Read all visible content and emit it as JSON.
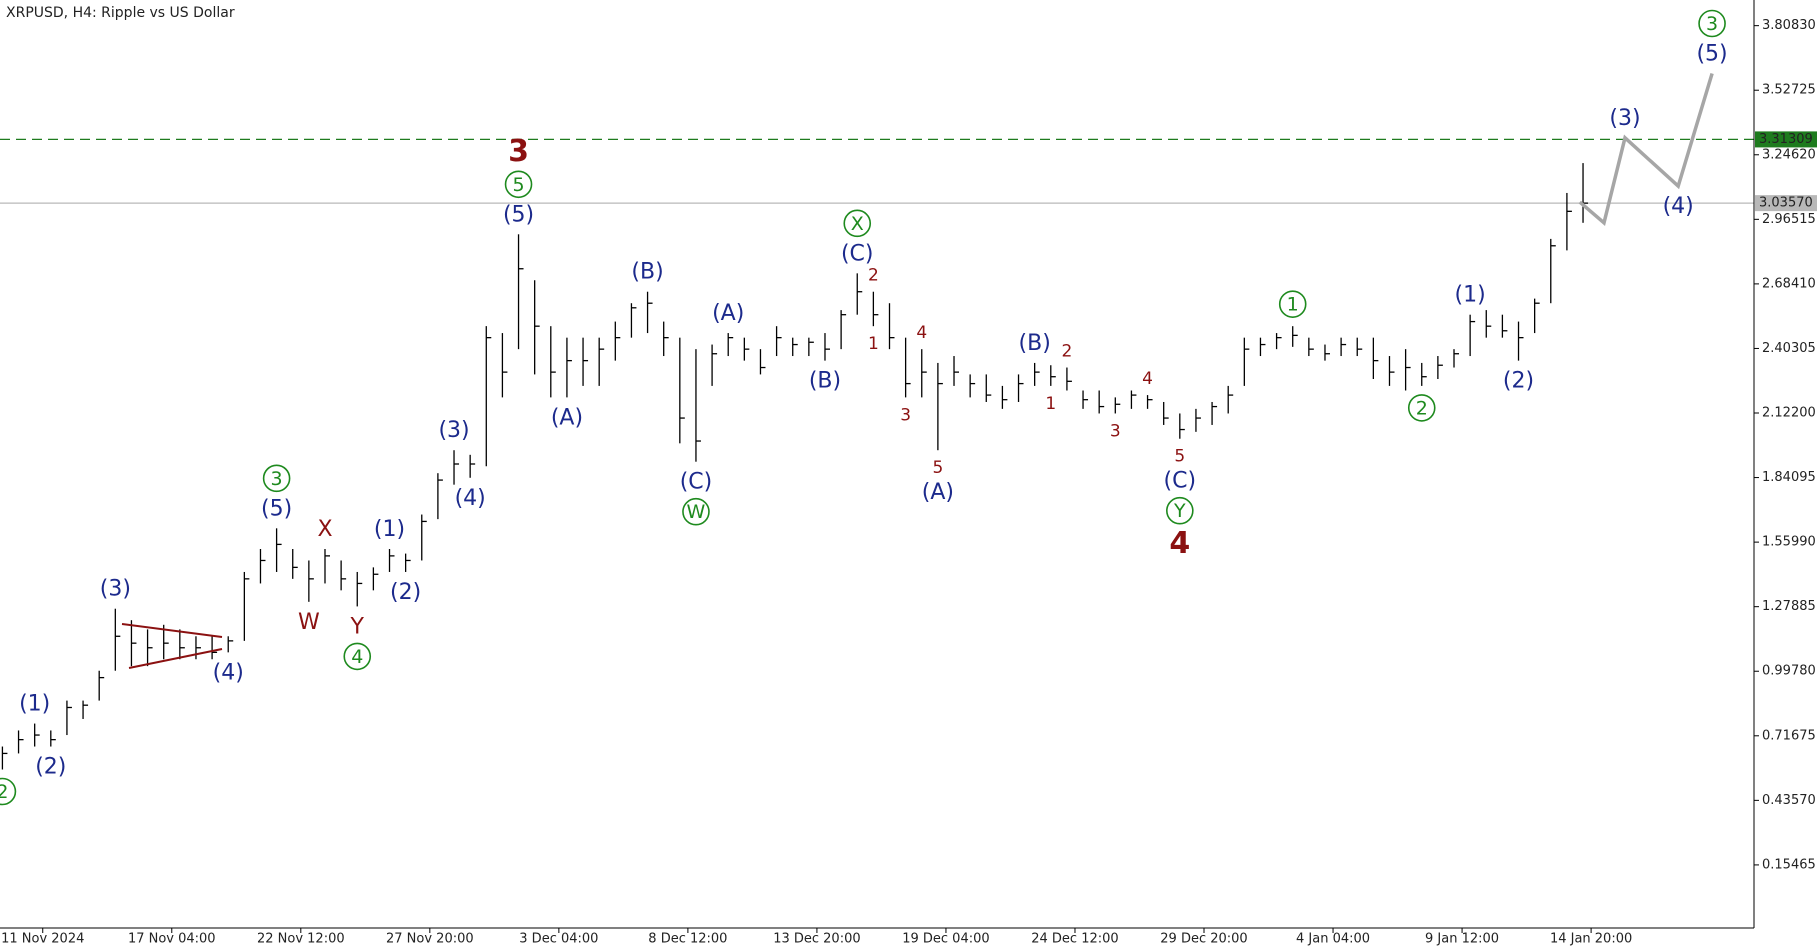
{
  "chart_data": {
    "type": "ohlc",
    "title": "XRPUSD, H4:  Ripple vs US Dollar",
    "ylim": [
      -0.12,
      3.92
    ],
    "xlim": [
      -0.15,
      108.6
    ],
    "yticks": [
      {
        "value": 3.8083,
        "label": "3.80830"
      },
      {
        "value": 3.52725,
        "label": "3.52725"
      },
      {
        "value": 3.2462,
        "label": "3.24620"
      },
      {
        "value": 2.96515,
        "label": "2.96515"
      },
      {
        "value": 2.6841,
        "label": "2.68410"
      },
      {
        "value": 2.40305,
        "label": "2.40305"
      },
      {
        "value": 2.122,
        "label": "2.12200"
      },
      {
        "value": 1.84095,
        "label": "1.84095"
      },
      {
        "value": 1.5599,
        "label": "1.55990"
      },
      {
        "value": 1.27885,
        "label": "1.27885"
      },
      {
        "value": 0.9978,
        "label": "0.99780"
      },
      {
        "value": 0.71675,
        "label": "0.71675"
      },
      {
        "value": 0.4357,
        "label": "0.43570"
      },
      {
        "value": 0.15465,
        "label": "0.15465"
      }
    ],
    "xticks": [
      {
        "value": 2.5,
        "label": "11 Nov 2024"
      },
      {
        "value": 10.5,
        "label": "17 Nov 04:00"
      },
      {
        "value": 18.5,
        "label": "22 Nov 12:00"
      },
      {
        "value": 26.5,
        "label": "27 Nov 20:00"
      },
      {
        "value": 34.5,
        "label": "3 Dec 04:00"
      },
      {
        "value": 42.5,
        "label": "8 Dec 12:00"
      },
      {
        "value": 50.5,
        "label": "13 Dec 20:00"
      },
      {
        "value": 58.5,
        "label": "19 Dec 04:00"
      },
      {
        "value": 66.5,
        "label": "24 Dec 12:00"
      },
      {
        "value": 74.5,
        "label": "29 Dec 20:00"
      },
      {
        "value": 82.5,
        "label": "4 Jan 04:00"
      },
      {
        "value": 90.5,
        "label": "9 Jan 12:00"
      },
      {
        "value": 98.5,
        "label": "14 Jan 20:00"
      }
    ],
    "color": "#000000",
    "high": [
      0.67,
      0.74,
      0.77,
      0.74,
      0.87,
      0.87,
      1.0,
      1.27,
      1.22,
      1.18,
      1.2,
      1.18,
      1.15,
      1.15,
      1.15,
      1.43,
      1.53,
      1.62,
      1.53,
      1.48,
      1.53,
      1.48,
      1.43,
      1.45,
      1.53,
      1.51,
      1.68,
      1.86,
      1.96,
      1.94,
      2.5,
      2.47,
      2.9,
      2.7,
      2.5,
      2.45,
      2.45,
      2.45,
      2.52,
      2.6,
      2.65,
      2.52,
      2.45,
      2.4,
      2.42,
      2.47,
      2.45,
      2.4,
      2.5,
      2.45,
      2.45,
      2.47,
      2.57,
      2.73,
      2.65,
      2.6,
      2.45,
      2.4,
      2.34,
      2.37,
      2.29,
      2.29,
      2.24,
      2.29,
      2.34,
      2.33,
      2.32,
      2.22,
      2.22,
      2.19,
      2.22,
      2.2,
      2.17,
      2.12,
      2.14,
      2.17,
      2.24,
      2.45,
      2.45,
      2.47,
      2.5,
      2.45,
      2.42,
      2.45,
      2.45,
      2.45,
      2.37,
      2.4,
      2.34,
      2.37,
      2.4,
      2.55,
      2.57,
      2.55,
      2.52,
      2.62,
      2.88,
      3.08,
      3.21
    ],
    "low": [
      0.57,
      0.64,
      0.67,
      0.67,
      0.72,
      0.79,
      0.87,
      1.0,
      1.02,
      1.02,
      1.05,
      1.05,
      1.05,
      1.05,
      1.08,
      1.13,
      1.38,
      1.43,
      1.4,
      1.3,
      1.38,
      1.35,
      1.28,
      1.35,
      1.43,
      1.43,
      1.48,
      1.66,
      1.81,
      1.84,
      1.89,
      2.19,
      2.4,
      2.29,
      2.19,
      2.19,
      2.24,
      2.24,
      2.35,
      2.45,
      2.47,
      2.37,
      1.99,
      1.91,
      2.24,
      2.37,
      2.35,
      2.29,
      2.37,
      2.37,
      2.37,
      2.35,
      2.4,
      2.55,
      2.5,
      2.4,
      2.19,
      2.19,
      1.96,
      2.24,
      2.19,
      2.17,
      2.14,
      2.17,
      2.24,
      2.24,
      2.22,
      2.14,
      2.12,
      2.12,
      2.14,
      2.14,
      2.07,
      2.01,
      2.04,
      2.07,
      2.12,
      2.24,
      2.37,
      2.4,
      2.41,
      2.37,
      2.35,
      2.37,
      2.37,
      2.27,
      2.24,
      2.22,
      2.24,
      2.27,
      2.32,
      2.37,
      2.45,
      2.45,
      2.35,
      2.47,
      2.6,
      2.83,
      2.95
    ],
    "close": [
      0.64,
      0.7,
      0.72,
      0.7,
      0.84,
      0.85,
      0.97,
      1.15,
      1.12,
      1.1,
      1.12,
      1.1,
      1.1,
      1.08,
      1.13,
      1.4,
      1.48,
      1.55,
      1.45,
      1.4,
      1.5,
      1.4,
      1.38,
      1.42,
      1.5,
      1.48,
      1.65,
      1.83,
      1.9,
      1.9,
      2.45,
      2.3,
      2.75,
      2.5,
      2.3,
      2.35,
      2.35,
      2.4,
      2.45,
      2.58,
      2.6,
      2.45,
      2.1,
      2.0,
      2.38,
      2.45,
      2.4,
      2.32,
      2.45,
      2.42,
      2.43,
      2.4,
      2.55,
      2.65,
      2.55,
      2.45,
      2.25,
      2.3,
      2.25,
      2.3,
      2.25,
      2.2,
      2.18,
      2.25,
      2.3,
      2.28,
      2.26,
      2.18,
      2.15,
      2.16,
      2.2,
      2.18,
      2.1,
      2.05,
      2.1,
      2.15,
      2.2,
      2.4,
      2.42,
      2.45,
      2.46,
      2.4,
      2.38,
      2.42,
      2.4,
      2.35,
      2.3,
      2.32,
      2.28,
      2.33,
      2.38,
      2.52,
      2.5,
      2.48,
      2.45,
      2.6,
      2.85,
      3.0,
      3.0357
    ],
    "levels": [
      {
        "value": 3.31309,
        "color": "#1e7b1e",
        "style": "dashed"
      },
      {
        "value": 3.0357,
        "label": "3.03570",
        "color": "#b8b8b8",
        "style": "solid"
      }
    ],
    "forecast": {
      "x": [
        97.8,
        99.3,
        100.6,
        103.9,
        106.0
      ],
      "values": [
        3.04,
        2.95,
        3.32,
        3.11,
        3.6
      ],
      "color": "#a6a6a6"
    },
    "annotations": [
      {
        "text": "2",
        "bar": 0,
        "side": "below",
        "color": "#1e8a1e",
        "circled": true
      },
      {
        "text": "(1)",
        "bar": 2,
        "side": "above",
        "color": "#1c2a8c"
      },
      {
        "text": "(2)",
        "bar": 3,
        "side": "below",
        "color": "#1c2a8c"
      },
      {
        "text": "(3)",
        "bar": 7,
        "side": "above",
        "color": "#1c2a8c"
      },
      {
        "text": "(4)",
        "bar": 14,
        "side": "below",
        "color": "#1c2a8c"
      },
      {
        "text": "(5)",
        "bar": 17,
        "side": "above",
        "color": "#1c2a8c"
      },
      {
        "text": "3",
        "bar": 17,
        "side": "above",
        "color": "#1e8a1e",
        "circled": true
      },
      {
        "text": "W",
        "bar": 19,
        "side": "below",
        "color": "#8b1111"
      },
      {
        "text": "X",
        "bar": 20,
        "side": "above",
        "color": "#8b1111"
      },
      {
        "text": "Y",
        "bar": 22,
        "side": "below",
        "color": "#8b1111"
      },
      {
        "text": "4",
        "bar": 22,
        "side": "below",
        "color": "#1e8a1e",
        "circled": true
      },
      {
        "text": "(1)",
        "bar": 24,
        "side": "above",
        "color": "#1c2a8c"
      },
      {
        "text": "(2)",
        "bar": 25,
        "side": "below",
        "color": "#1c2a8c"
      },
      {
        "text": "(3)",
        "bar": 28,
        "side": "above",
        "color": "#1c2a8c"
      },
      {
        "text": "(4)",
        "bar": 29,
        "side": "below",
        "color": "#1c2a8c"
      },
      {
        "text": "(5)",
        "bar": 32,
        "side": "above",
        "color": "#1c2a8c"
      },
      {
        "text": "5",
        "bar": 32,
        "side": "above",
        "color": "#1e8a1e",
        "circled": true
      },
      {
        "text": "3",
        "bar": 32,
        "side": "above",
        "color": "#8b1111",
        "size": "large"
      },
      {
        "text": "(A)",
        "bar": 35,
        "side": "below",
        "color": "#1c2a8c"
      },
      {
        "text": "(B)",
        "bar": 40,
        "side": "above",
        "color": "#1c2a8c"
      },
      {
        "text": "(C)",
        "bar": 43,
        "side": "below",
        "color": "#1c2a8c"
      },
      {
        "text": "W",
        "bar": 43,
        "side": "below",
        "color": "#1e8a1e",
        "circled": true
      },
      {
        "text": "(A)",
        "bar": 45,
        "side": "above",
        "color": "#1c2a8c"
      },
      {
        "text": "(B)",
        "bar": 51,
        "side": "below",
        "color": "#1c2a8c"
      },
      {
        "text": "(C)",
        "bar": 53,
        "side": "above",
        "color": "#1c2a8c"
      },
      {
        "text": "X",
        "bar": 53,
        "side": "above",
        "color": "#1e8a1e",
        "circled": true
      },
      {
        "text": "2",
        "bar": 54,
        "side": "above",
        "color": "#8b1111",
        "size": "small"
      },
      {
        "text": "1",
        "bar": 54,
        "side": "below",
        "color": "#8b1111",
        "size": "small"
      },
      {
        "text": "3",
        "bar": 56,
        "side": "below",
        "color": "#8b1111",
        "size": "small"
      },
      {
        "text": "4",
        "bar": 57,
        "side": "above",
        "color": "#8b1111",
        "size": "small"
      },
      {
        "text": "5",
        "bar": 58,
        "side": "below",
        "color": "#8b1111",
        "size": "small"
      },
      {
        "text": "(A)",
        "bar": 58,
        "side": "below",
        "color": "#1c2a8c"
      },
      {
        "text": "(B)",
        "bar": 64,
        "side": "above",
        "color": "#1c2a8c"
      },
      {
        "text": "1",
        "bar": 65,
        "side": "below",
        "color": "#8b1111",
        "size": "small"
      },
      {
        "text": "2",
        "bar": 66,
        "side": "above",
        "color": "#8b1111",
        "size": "small"
      },
      {
        "text": "3",
        "bar": 69,
        "side": "below",
        "color": "#8b1111",
        "size": "small"
      },
      {
        "text": "4",
        "bar": 71,
        "side": "above",
        "color": "#8b1111",
        "size": "small"
      },
      {
        "text": "5",
        "bar": 73,
        "side": "below",
        "color": "#8b1111",
        "size": "small"
      },
      {
        "text": "(C)",
        "bar": 73,
        "side": "below",
        "color": "#1c2a8c"
      },
      {
        "text": "Y",
        "bar": 73,
        "side": "below",
        "color": "#1e8a1e",
        "circled": true
      },
      {
        "text": "4",
        "bar": 73,
        "side": "below",
        "color": "#8b1111",
        "size": "large"
      },
      {
        "text": "1",
        "bar": 80,
        "side": "above",
        "color": "#1e8a1e",
        "circled": true
      },
      {
        "text": "2",
        "bar": 88,
        "side": "below",
        "color": "#1e8a1e",
        "circled": true
      },
      {
        "text": "(1)",
        "bar": 91,
        "side": "above",
        "color": "#1c2a8c"
      },
      {
        "text": "(2)",
        "bar": 94,
        "side": "below",
        "color": "#1c2a8c"
      },
      {
        "text": "(3)",
        "point": 2,
        "side": "above",
        "color": "#1c2a8c"
      },
      {
        "text": "(4)",
        "point": 3,
        "side": "below",
        "color": "#1c2a8c"
      },
      {
        "text": "(5)",
        "point": 4,
        "side": "above",
        "color": "#1c2a8c"
      },
      {
        "text": "3",
        "point": 4,
        "side": "above",
        "color": "#1e8a1e",
        "circled": true
      }
    ]
  }
}
